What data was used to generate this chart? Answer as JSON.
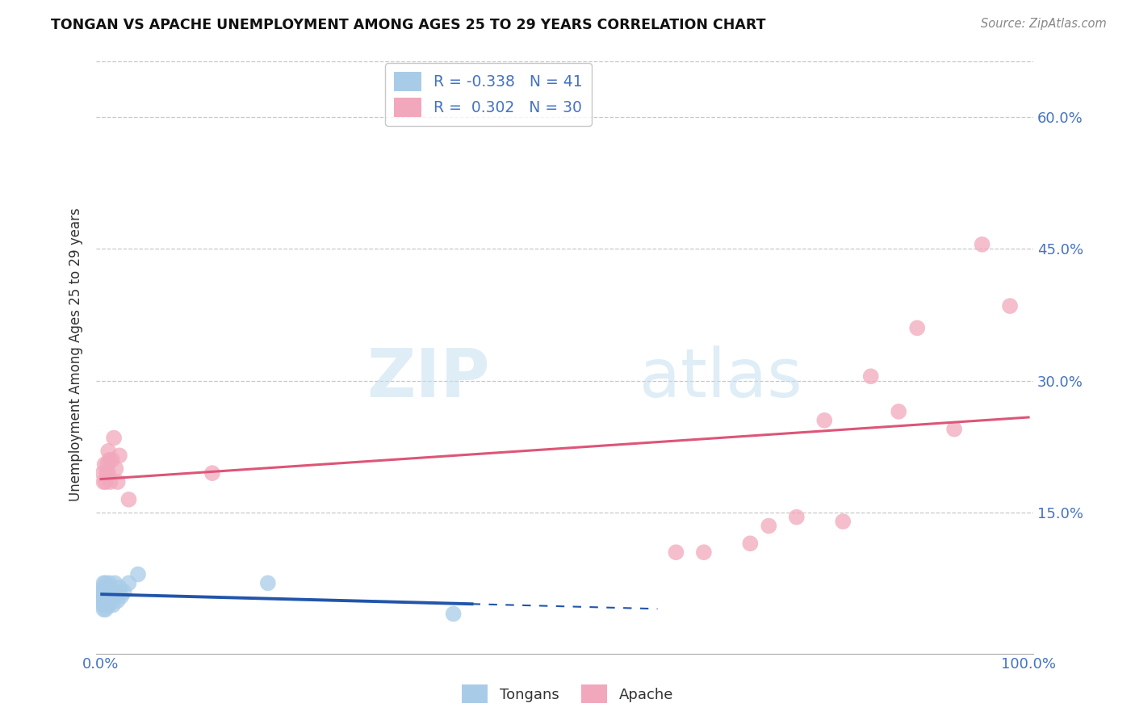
{
  "title": "TONGAN VS APACHE UNEMPLOYMENT AMONG AGES 25 TO 29 YEARS CORRELATION CHART",
  "source": "Source: ZipAtlas.com",
  "ylabel": "Unemployment Among Ages 25 to 29 years",
  "xlim": [
    -0.005,
    1.005
  ],
  "ylim": [
    -0.01,
    0.67
  ],
  "xticks": [
    0.0,
    1.0
  ],
  "xtick_labels": [
    "0.0%",
    "100.0%"
  ],
  "ytick_positions": [
    0.15,
    0.3,
    0.45,
    0.6
  ],
  "ytick_labels": [
    "15.0%",
    "30.0%",
    "45.0%",
    "60.0%"
  ],
  "tongan_R": -0.338,
  "tongan_N": 41,
  "apache_R": 0.302,
  "apache_N": 30,
  "tongan_color": "#a8cce8",
  "apache_color": "#f2a8bc",
  "tongan_line_color": "#2255aa",
  "apache_line_color": "#dd5577",
  "tongan_x": [
    0.001,
    0.001,
    0.002,
    0.002,
    0.002,
    0.003,
    0.003,
    0.003,
    0.003,
    0.004,
    0.004,
    0.004,
    0.005,
    0.005,
    0.005,
    0.005,
    0.006,
    0.006,
    0.007,
    0.007,
    0.007,
    0.008,
    0.008,
    0.009,
    0.009,
    0.01,
    0.01,
    0.011,
    0.012,
    0.013,
    0.014,
    0.015,
    0.016,
    0.018,
    0.02,
    0.022,
    0.025,
    0.03,
    0.04,
    0.18,
    0.38
  ],
  "tongan_y": [
    0.05,
    0.06,
    0.045,
    0.055,
    0.065,
    0.04,
    0.05,
    0.06,
    0.07,
    0.045,
    0.055,
    0.065,
    0.04,
    0.05,
    0.06,
    0.07,
    0.05,
    0.06,
    0.045,
    0.055,
    0.065,
    0.05,
    0.06,
    0.045,
    0.07,
    0.055,
    0.065,
    0.05,
    0.06,
    0.045,
    0.055,
    0.07,
    0.06,
    0.05,
    0.065,
    0.055,
    0.06,
    0.07,
    0.08,
    0.07,
    0.035
  ],
  "apache_x": [
    0.002,
    0.003,
    0.004,
    0.005,
    0.006,
    0.007,
    0.008,
    0.008,
    0.009,
    0.01,
    0.012,
    0.014,
    0.016,
    0.018,
    0.02,
    0.03,
    0.12,
    0.62,
    0.65,
    0.7,
    0.72,
    0.75,
    0.78,
    0.8,
    0.83,
    0.86,
    0.88,
    0.92,
    0.95,
    0.98
  ],
  "apache_y": [
    0.195,
    0.185,
    0.205,
    0.185,
    0.195,
    0.205,
    0.22,
    0.195,
    0.21,
    0.185,
    0.21,
    0.235,
    0.2,
    0.185,
    0.215,
    0.165,
    0.195,
    0.105,
    0.105,
    0.115,
    0.135,
    0.145,
    0.255,
    0.14,
    0.305,
    0.265,
    0.36,
    0.245,
    0.455,
    0.385
  ],
  "watermark_zip": "ZIP",
  "watermark_atlas": "atlas",
  "background_color": "#ffffff",
  "grid_color": "#c8c8c8"
}
